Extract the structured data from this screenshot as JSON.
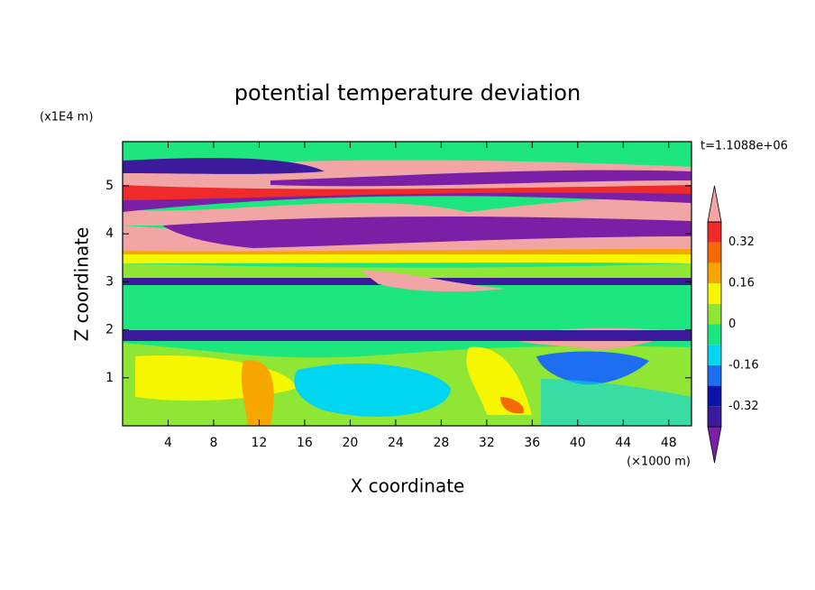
{
  "chart_data": {
    "type": "contour",
    "title": "potential temperature deviation",
    "x_label": "X coordinate",
    "y_label": "Z coordinate",
    "x_unit": "(×1000 m)",
    "y_unit": "(x1E4 m)",
    "annotation": "t=1.1088e+06",
    "xlim": [
      0,
      50
    ],
    "xticks": [
      4,
      8,
      12,
      16,
      20,
      24,
      28,
      32,
      36,
      40,
      44,
      48
    ],
    "ylim": [
      0,
      5.92
    ],
    "yticks": [
      1,
      2,
      3,
      4,
      5
    ],
    "levels": [
      -0.4,
      -0.32,
      -0.24,
      -0.16,
      -0.08,
      0,
      0.08,
      0.16,
      0.24,
      0.32,
      0.4
    ],
    "colors": [
      "#7a1fa6",
      "#3c1a9c",
      "#0c14a8",
      "#1e6ef2",
      "#00d6ef",
      "#1ee67e",
      "#8fe634",
      "#f6f600",
      "#f7a600",
      "#f46a00",
      "#ee2a2a",
      "#f2a5a5"
    ],
    "colorbar_ticks": [
      0.32,
      0.16,
      0,
      -0.16,
      -0.32
    ]
  }
}
